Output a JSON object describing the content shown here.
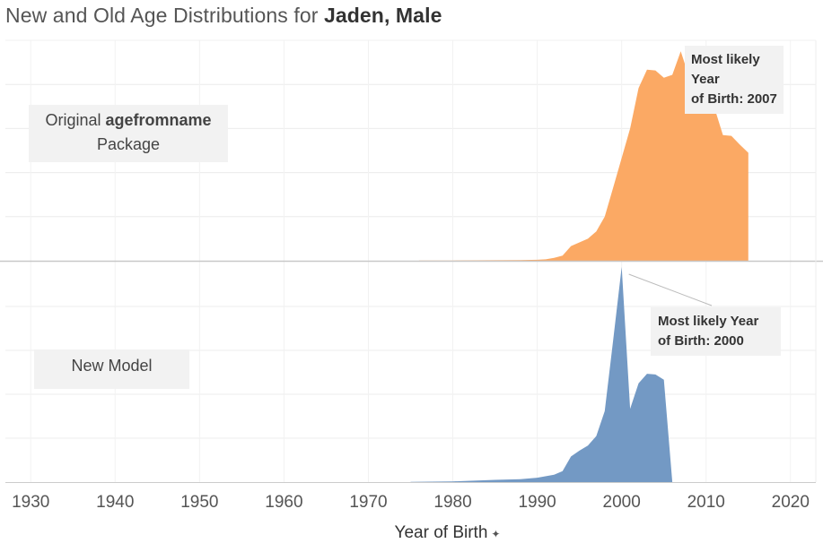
{
  "title": {
    "prefix": "New and Old Age Distributions for",
    "name": "Jaden, Male"
  },
  "chart_data": [
    {
      "type": "area",
      "panel": "top",
      "label_line1_prefix": "Original",
      "label_line1_bold": "agefromname",
      "label_line2": "Package",
      "color": "#fba964",
      "annotation": {
        "line1": "Most likely Year",
        "line2": "of Birth: 2007"
      },
      "x": [
        1976,
        1980,
        1985,
        1988,
        1990,
        1991,
        1992,
        1993,
        1994,
        1995,
        1996,
        1997,
        1998,
        1999,
        2000,
        2001,
        2002,
        2003,
        2004,
        2005,
        2006,
        2007,
        2008,
        2009,
        2010,
        2011,
        2012,
        2013,
        2014,
        2015
      ],
      "values": [
        0.0002,
        0.0004,
        0.0007,
        0.001,
        0.0013,
        0.002,
        0.004,
        0.007,
        0.02,
        0.025,
        0.03,
        0.04,
        0.06,
        0.1,
        0.14,
        0.18,
        0.235,
        0.26,
        0.259,
        0.249,
        0.253,
        0.285,
        0.25,
        0.23,
        0.237,
        0.208,
        0.171,
        0.17,
        0.158,
        0.147
      ]
    },
    {
      "type": "area",
      "panel": "bottom",
      "label": "New Model",
      "color": "#7399c4",
      "annotation": {
        "line1": "Most likely Year",
        "line2": "of Birth: 2000"
      },
      "x": [
        1975,
        1980,
        1985,
        1988,
        1990,
        1992,
        1993,
        1994,
        1995,
        1996,
        1997,
        1998,
        1999,
        2000,
        2001,
        2002,
        2003,
        2004,
        2005,
        2006
      ],
      "values": [
        0.0003,
        0.001,
        0.003,
        0.004,
        0.006,
        0.01,
        0.015,
        0.035,
        0.043,
        0.05,
        0.063,
        0.097,
        0.195,
        0.294,
        0.1,
        0.135,
        0.148,
        0.147,
        0.14,
        0
      ]
    }
  ],
  "x_axis": {
    "label": "Year of Birth",
    "ticks": [
      1930,
      1940,
      1950,
      1960,
      1970,
      1980,
      1990,
      2000,
      2010,
      2020
    ],
    "range": [
      1927,
      2023
    ]
  },
  "y_axis": {
    "top_range": [
      0,
      0.3
    ],
    "bottom_range": [
      0,
      0.3
    ],
    "grid": true
  }
}
